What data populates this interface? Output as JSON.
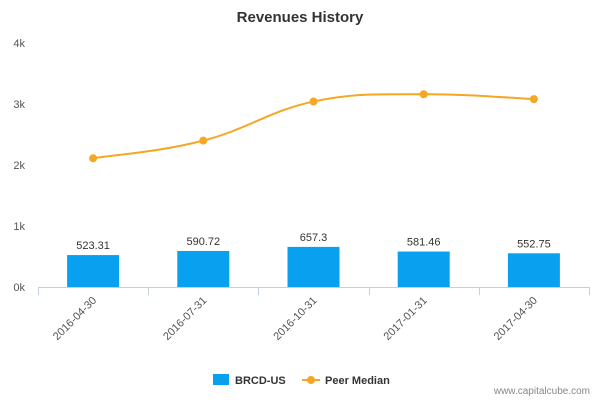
{
  "chart_data": {
    "type": "bar",
    "title": "Revenues History",
    "categories": [
      "2016-04-30",
      "2016-07-31",
      "2016-10-31",
      "2017-01-31",
      "2017-04-30"
    ],
    "ylim": [
      0,
      4000
    ],
    "yticks": [
      {
        "value": 0,
        "label": "0k"
      },
      {
        "value": 1000,
        "label": "1k"
      },
      {
        "value": 2000,
        "label": "2k"
      },
      {
        "value": 3000,
        "label": "3k"
      },
      {
        "value": 4000,
        "label": "4k"
      }
    ],
    "grid": false,
    "legend_position": "bottom-center",
    "series": [
      {
        "name": "BRCD-US",
        "type": "bar",
        "color": "#0aa0f0",
        "values": [
          523.31,
          590.72,
          657.3,
          581.46,
          552.75
        ],
        "labels": [
          "523.31",
          "590.72",
          "657.3",
          "581.46",
          "552.75"
        ]
      },
      {
        "name": "Peer Median",
        "type": "line",
        "color": "#f5a623",
        "values": [
          2110,
          2400,
          3040,
          3160,
          3080
        ]
      }
    ]
  },
  "footer": {
    "watermark": "www.capitalcube.com"
  }
}
